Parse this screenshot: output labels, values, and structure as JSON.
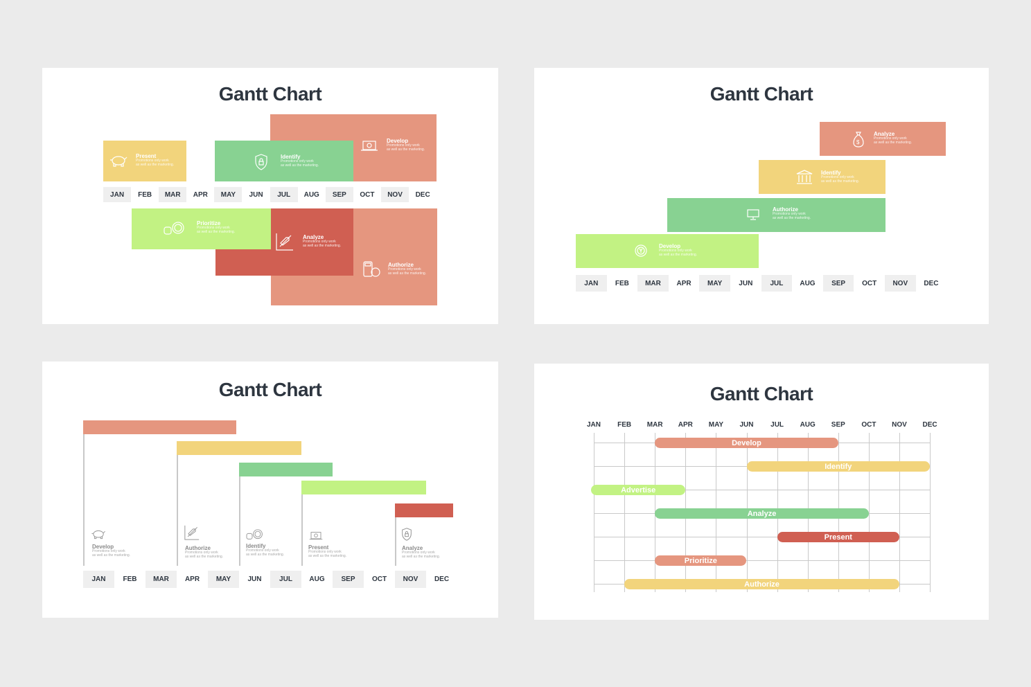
{
  "colors": {
    "salmon": "#e5967f",
    "green": "#88d292",
    "yellow": "#f2d47c",
    "lime": "#c2f283",
    "red": "#d05f52",
    "text": "#2e3640",
    "background": "#ebebeb"
  },
  "months": [
    "JAN",
    "FEB",
    "MAR",
    "APR",
    "MAY",
    "JUN",
    "JUL",
    "AUG",
    "SEP",
    "OCT",
    "NOV",
    "DEC"
  ],
  "desc": {
    "line1": "Promotions only work",
    "line2": "as well as the marketing."
  },
  "chart_data": [
    {
      "type": "gantt",
      "title": "Gantt Chart",
      "categories": [
        "JAN",
        "FEB",
        "MAR",
        "APR",
        "MAY",
        "JUN",
        "JUL",
        "AUG",
        "SEP",
        "OCT",
        "NOV",
        "DEC"
      ],
      "tasks": [
        {
          "name": "Present",
          "start": "JAN",
          "end": "MAR",
          "color": "#f2d47c",
          "icon": "piggy-bank-icon"
        },
        {
          "name": "Identify",
          "start": "MAY",
          "end": "SEP",
          "color": "#88d292",
          "icon": "shield-lock-icon"
        },
        {
          "name": "Develop",
          "start": "JUL",
          "end": "DEC",
          "color": "#e5967f",
          "icon": "laptop-icon"
        },
        {
          "name": "Prioritize",
          "start": "FEB",
          "end": "JUN",
          "color": "#c2f283",
          "icon": "coins-icon"
        },
        {
          "name": "Analyze",
          "start": "MAY",
          "end": "SEP",
          "color": "#d05f52",
          "icon": "rocket-chart-icon"
        },
        {
          "name": "Authorize",
          "start": "JUL",
          "end": "DEC",
          "color": "#e5967f",
          "icon": "calculator-coin-icon"
        }
      ]
    },
    {
      "type": "gantt",
      "title": "Gantt Chart",
      "categories": [
        "JAN",
        "FEB",
        "MAR",
        "APR",
        "MAY",
        "JUN",
        "JUL",
        "AUG",
        "SEP",
        "OCT",
        "NOV",
        "DEC"
      ],
      "tasks": [
        {
          "name": "Analyze",
          "start": "SEP",
          "end": "DEC",
          "color": "#e5967f",
          "icon": "money-bag-icon"
        },
        {
          "name": "Identify",
          "start": "JUL",
          "end": "OCT",
          "color": "#f2d47c",
          "icon": "bank-icon"
        },
        {
          "name": "Authorize",
          "start": "APR",
          "end": "OCT",
          "color": "#88d292",
          "icon": "monitor-icon"
        },
        {
          "name": "Develop",
          "start": "JAN",
          "end": "JUN",
          "color": "#c2f283",
          "icon": "yen-coin-icon"
        }
      ]
    },
    {
      "type": "gantt",
      "title": "Gantt Chart",
      "categories": [
        "JAN",
        "FEB",
        "MAR",
        "APR",
        "MAY",
        "JUN",
        "JUL",
        "AUG",
        "SEP",
        "OCT",
        "NOV",
        "DEC"
      ],
      "tasks": [
        {
          "name": "Develop",
          "start": "JAN",
          "end": "MAY",
          "color": "#e5967f",
          "icon": "piggy-bank-icon"
        },
        {
          "name": "Authorize",
          "start": "APR",
          "end": "JUL",
          "color": "#f2d47c",
          "icon": "rocket-chart-icon"
        },
        {
          "name": "Identify",
          "start": "JUN",
          "end": "AUG",
          "color": "#88d292",
          "icon": "coins-icon"
        },
        {
          "name": "Present",
          "start": "AUG",
          "end": "NOV",
          "color": "#c2f283",
          "icon": "laptop-icon"
        },
        {
          "name": "Analyze",
          "start": "NOV",
          "end": "DEC",
          "color": "#d05f52",
          "icon": "shield-lock-icon"
        }
      ]
    },
    {
      "type": "gantt",
      "title": "Gantt Chart",
      "categories": [
        "JAN",
        "FEB",
        "MAR",
        "APR",
        "MAY",
        "JUN",
        "JUL",
        "AUG",
        "SEP",
        "OCT",
        "NOV",
        "DEC"
      ],
      "grid": true,
      "tasks": [
        {
          "name": "Develop",
          "start": "MAR",
          "end": "SEP",
          "color": "#e5967f"
        },
        {
          "name": "Identify",
          "start": "JUN",
          "end": "DEC",
          "color": "#f2d47c"
        },
        {
          "name": "Advertise",
          "start": "JAN",
          "end": "APR",
          "color": "#c2f283"
        },
        {
          "name": "Analyze",
          "start": "MAR",
          "end": "OCT",
          "color": "#88d292"
        },
        {
          "name": "Present",
          "start": "JUL",
          "end": "NOV",
          "color": "#d05f52"
        },
        {
          "name": "Prioritize",
          "start": "MAR",
          "end": "JUN",
          "color": "#e5967f"
        },
        {
          "name": "Authorize",
          "start": "FEB",
          "end": "NOV",
          "color": "#f2d47c"
        }
      ]
    }
  ]
}
